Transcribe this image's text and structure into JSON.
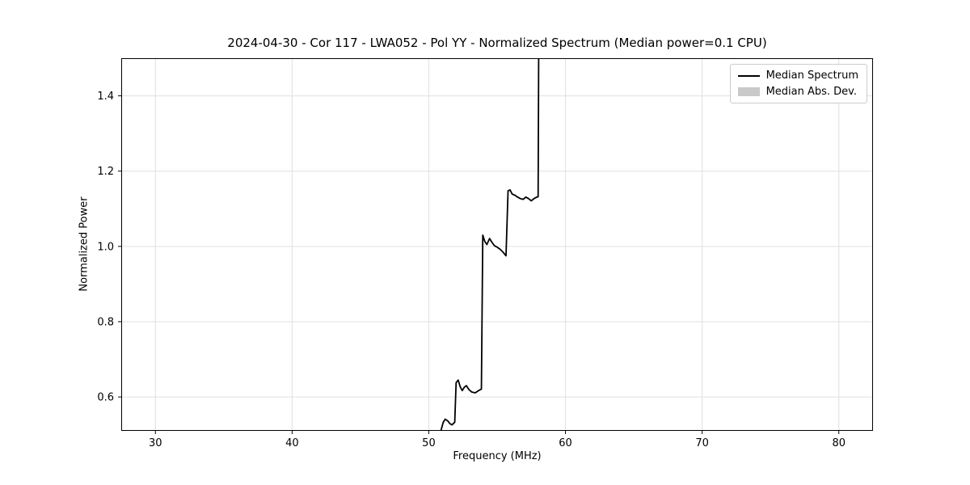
{
  "chart_data": {
    "type": "line",
    "title": "2024-04-30 - Cor 117 - LWA052 - Pol YY - Normalized Spectrum (Median power=0.1 CPU)",
    "xlabel": "Frequency (MHz)",
    "ylabel": "Normalized Power",
    "xlim": [
      27.5,
      82.5
    ],
    "ylim": [
      0.51,
      1.5
    ],
    "grid": true,
    "grid_color": "#e0e0e0",
    "axis_color": "#000000",
    "xticks": {
      "values": [
        30,
        40,
        50,
        60,
        70,
        80
      ],
      "labels": [
        "30",
        "40",
        "50",
        "60",
        "70",
        "80"
      ]
    },
    "yticks": {
      "values": [
        0.6,
        0.8,
        1.0,
        1.2,
        1.4
      ],
      "labels": [
        "0.6",
        "0.8",
        "1.0",
        "1.2",
        "1.4"
      ]
    },
    "legend": {
      "position": "upper right",
      "entries": [
        {
          "label": "Median Spectrum",
          "type": "line",
          "color": "#000000"
        },
        {
          "label": "Median Abs. Dev.",
          "type": "patch",
          "color": "#c9c9c9"
        }
      ]
    },
    "series": [
      {
        "name": "Median Spectrum",
        "color": "#000000",
        "points": [
          [
            50.9,
            0.512
          ],
          [
            51.05,
            0.532
          ],
          [
            51.2,
            0.541
          ],
          [
            51.4,
            0.536
          ],
          [
            51.55,
            0.529
          ],
          [
            51.7,
            0.526
          ],
          [
            51.9,
            0.533
          ],
          [
            52.0,
            0.638
          ],
          [
            52.15,
            0.645
          ],
          [
            52.3,
            0.627
          ],
          [
            52.45,
            0.617
          ],
          [
            52.6,
            0.626
          ],
          [
            52.75,
            0.63
          ],
          [
            52.95,
            0.619
          ],
          [
            53.15,
            0.613
          ],
          [
            53.4,
            0.611
          ],
          [
            53.65,
            0.617
          ],
          [
            53.85,
            0.621
          ],
          [
            53.95,
            1.03
          ],
          [
            54.1,
            1.013
          ],
          [
            54.25,
            1.005
          ],
          [
            54.45,
            1.021
          ],
          [
            54.6,
            1.012
          ],
          [
            54.8,
            1.002
          ],
          [
            55.0,
            0.998
          ],
          [
            55.2,
            0.993
          ],
          [
            55.4,
            0.986
          ],
          [
            55.65,
            0.975
          ],
          [
            55.8,
            1.148
          ],
          [
            55.95,
            1.15
          ],
          [
            56.1,
            1.139
          ],
          [
            56.3,
            1.136
          ],
          [
            56.5,
            1.131
          ],
          [
            56.7,
            1.127
          ],
          [
            56.9,
            1.125
          ],
          [
            57.1,
            1.131
          ],
          [
            57.3,
            1.127
          ],
          [
            57.5,
            1.121
          ],
          [
            57.7,
            1.127
          ],
          [
            57.9,
            1.131
          ],
          [
            58.0,
            1.132
          ],
          [
            58.05,
            1.6
          ]
        ]
      }
    ]
  }
}
